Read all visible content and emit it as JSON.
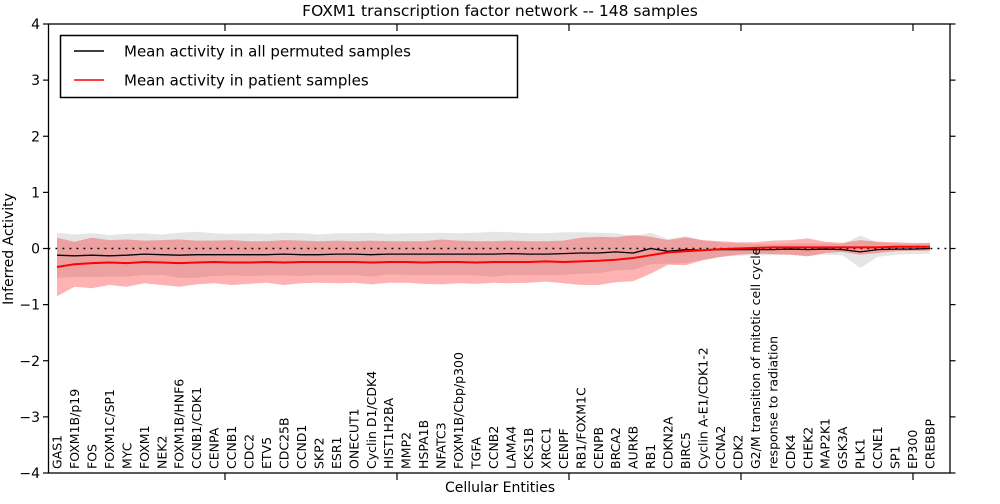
{
  "title": "FOXM1 transcription factor network -- 148 samples",
  "xlabel": "Cellular Entities",
  "ylabel": "Inferred Activity",
  "legend": {
    "items": [
      {
        "label": "Mean activity in all permuted samples",
        "color": "#000000"
      },
      {
        "label": "Mean activity in patient samples",
        "color": "#ff0000"
      }
    ]
  },
  "chart_data": {
    "type": "line",
    "title": "FOXM1 transcription factor network -- 148 samples",
    "xlabel": "Cellular Entities",
    "ylabel": "Inferred Activity",
    "ylim": [
      -4,
      4
    ],
    "yticks": [
      4,
      3,
      2,
      1,
      0,
      -1,
      -2,
      -3,
      -4
    ],
    "grid": false,
    "zero_reference_line": "dotted",
    "legend_position": "upper left",
    "categories": [
      "GAS1",
      "FOXM1B/p19",
      "FOS",
      "FOXM1C/SP1",
      "MYC",
      "FOXM1",
      "NEK2",
      "FOXM1B/HNF6",
      "CCNB1/CDK1",
      "CENPA",
      "CCNB1",
      "CDC2",
      "ETV5",
      "CDC25B",
      "CCND1",
      "SKP2",
      "ESR1",
      "ONECUT1",
      "Cyclin D1/CDK4",
      "HIST1H2BA",
      "MMP2",
      "HSPA1B",
      "NFATC3",
      "FOXM1B/Cbp/p300",
      "TGFA",
      "CCNB2",
      "LAMA4",
      "CKS1B",
      "XRCC1",
      "CENPF",
      "RB1/FOXM1C",
      "CENPB",
      "BRCA2",
      "AURKB",
      "RB1",
      "CDKN2A",
      "BIRC5",
      "Cyclin A-E1/CDK1-2",
      "CCNA2",
      "CDK2",
      "G2/M transition of mitotic cell cycle",
      "response to radiation",
      "CDK4",
      "CHEK2",
      "MAP2K1",
      "GSK3A",
      "PLK1",
      "CCNE1",
      "SP1",
      "EP300",
      "CREBBP"
    ],
    "series": [
      {
        "name": "Mean activity in all permuted samples",
        "color": "#000000",
        "band_color": "rgba(0,0,0,0.10)",
        "mean": [
          -0.12,
          -0.13,
          -0.12,
          -0.13,
          -0.12,
          -0.1,
          -0.11,
          -0.12,
          -0.11,
          -0.11,
          -0.11,
          -0.11,
          -0.11,
          -0.1,
          -0.11,
          -0.11,
          -0.1,
          -0.1,
          -0.11,
          -0.1,
          -0.1,
          -0.1,
          -0.1,
          -0.1,
          -0.1,
          -0.1,
          -0.09,
          -0.1,
          -0.1,
          -0.09,
          -0.08,
          -0.08,
          -0.06,
          -0.08,
          0.0,
          -0.05,
          -0.02,
          -0.03,
          -0.02,
          -0.02,
          -0.02,
          -0.02,
          -0.01,
          -0.02,
          -0.01,
          -0.02,
          -0.06,
          -0.02,
          -0.01,
          -0.01,
          0.0
        ],
        "std": [
          0.4,
          0.38,
          0.39,
          0.37,
          0.38,
          0.37,
          0.36,
          0.4,
          0.41,
          0.38,
          0.37,
          0.38,
          0.37,
          0.38,
          0.38,
          0.36,
          0.37,
          0.37,
          0.39,
          0.36,
          0.37,
          0.37,
          0.38,
          0.37,
          0.38,
          0.4,
          0.38,
          0.37,
          0.37,
          0.38,
          0.37,
          0.36,
          0.33,
          0.3,
          0.28,
          0.22,
          0.24,
          0.17,
          0.13,
          0.11,
          0.1,
          0.1,
          0.1,
          0.11,
          0.1,
          0.1,
          0.29,
          0.13,
          0.1,
          0.09,
          0.09
        ]
      },
      {
        "name": "Mean activity in patient samples",
        "color": "#ff0000",
        "band_color": "rgba(255,0,0,0.30)",
        "mean": [
          -0.33,
          -0.28,
          -0.26,
          -0.25,
          -0.26,
          -0.24,
          -0.25,
          -0.26,
          -0.25,
          -0.24,
          -0.25,
          -0.25,
          -0.24,
          -0.25,
          -0.24,
          -0.24,
          -0.24,
          -0.24,
          -0.25,
          -0.24,
          -0.24,
          -0.25,
          -0.24,
          -0.24,
          -0.25,
          -0.24,
          -0.24,
          -0.24,
          -0.23,
          -0.24,
          -0.23,
          -0.22,
          -0.2,
          -0.17,
          -0.12,
          -0.07,
          -0.05,
          -0.03,
          -0.01,
          0.0,
          0.01,
          0.02,
          0.02,
          0.02,
          0.02,
          0.02,
          0.02,
          0.02,
          0.03,
          0.03,
          0.03
        ],
        "std": [
          0.52,
          0.4,
          0.45,
          0.4,
          0.42,
          0.38,
          0.4,
          0.42,
          0.39,
          0.38,
          0.4,
          0.38,
          0.37,
          0.4,
          0.38,
          0.37,
          0.38,
          0.37,
          0.39,
          0.37,
          0.37,
          0.38,
          0.4,
          0.38,
          0.38,
          0.37,
          0.38,
          0.37,
          0.36,
          0.38,
          0.42,
          0.43,
          0.4,
          0.41,
          0.33,
          0.22,
          0.25,
          0.18,
          0.14,
          0.11,
          0.1,
          0.12,
          0.13,
          0.16,
          0.1,
          0.08,
          0.13,
          0.1,
          0.08,
          0.07,
          0.07
        ]
      }
    ]
  }
}
